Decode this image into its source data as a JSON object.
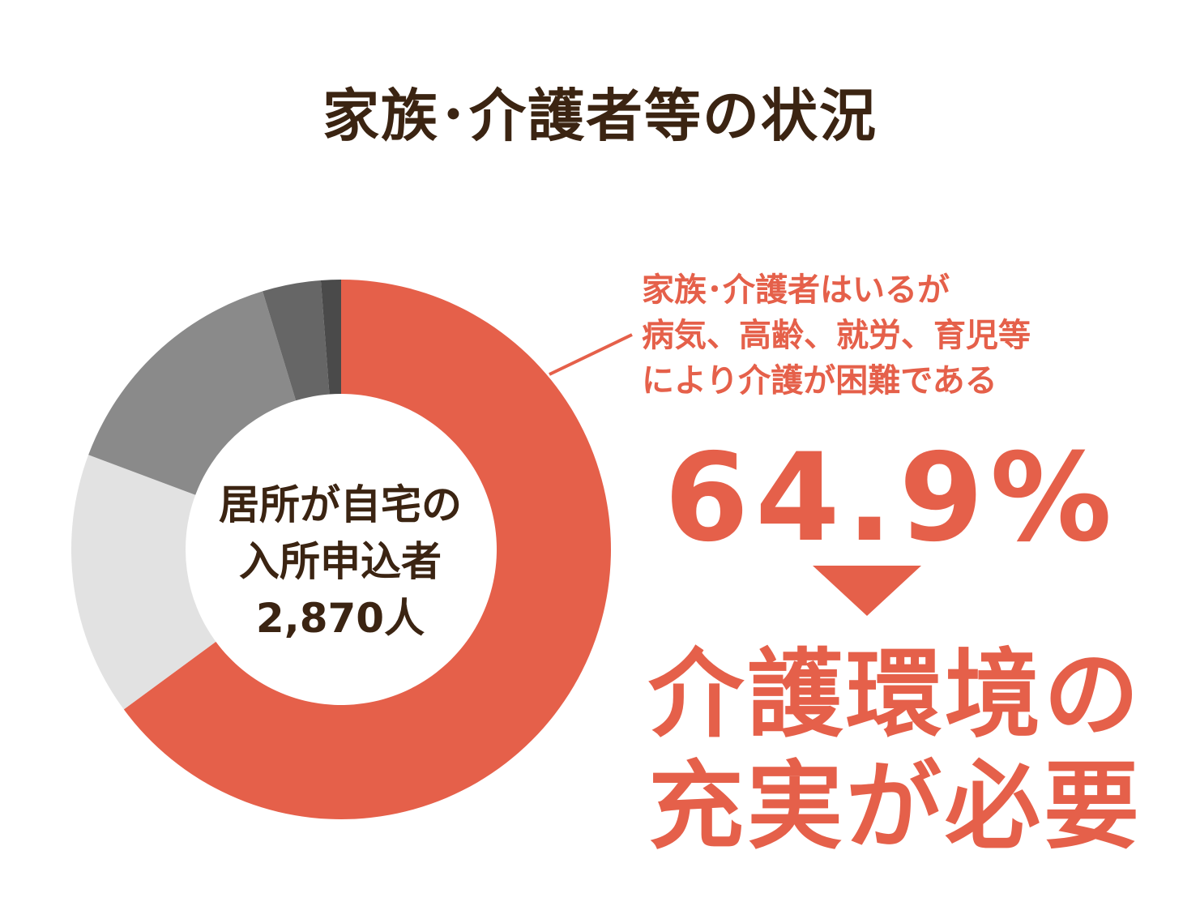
{
  "title": "家族･介護者等の状況",
  "center_label": {
    "line1": "居所が自宅の",
    "line2": "入所申込者",
    "line3": "2,870人"
  },
  "callout": {
    "line1": "家族･介護者はいるが",
    "line2": "病気、高齢、就労、育児等",
    "line3": "により介護が困難である",
    "value": "64.9%"
  },
  "conclusion": {
    "line1": "介護環境の",
    "line2": "充実が必要"
  },
  "colors": {
    "accent": "#e5604a",
    "title": "#3b2412"
  },
  "chart_data": {
    "type": "pie",
    "hole": true,
    "start": "top",
    "direction": "clockwise",
    "slices": [
      {
        "value": 64.9,
        "color": "#e5604a",
        "labeled": true
      },
      {
        "value": 15.8,
        "color": "#e2e2e2"
      },
      {
        "value": 14.6,
        "color": "#8a8a8a"
      },
      {
        "value": 3.5,
        "color": "#666666"
      },
      {
        "value": 1.2,
        "color": "#4a4a4a"
      }
    ]
  }
}
